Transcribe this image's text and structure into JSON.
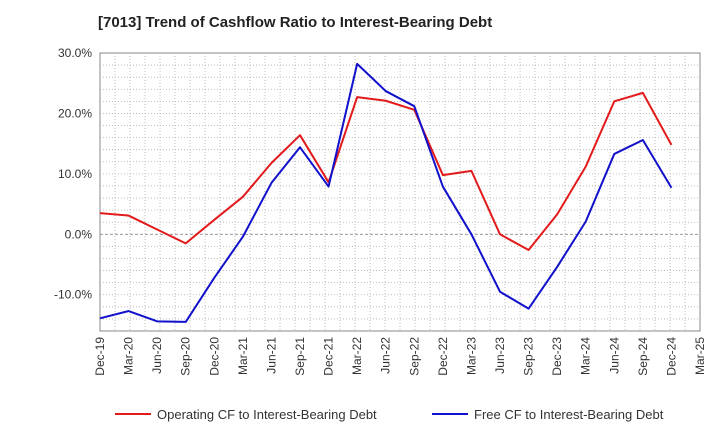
{
  "chart_data": {
    "type": "line",
    "title": "[7013]  Trend of Cashflow Ratio to Interest-Bearing Debt",
    "xlabel": "",
    "ylabel": "",
    "categories": [
      "Dec-19",
      "Mar-20",
      "Jun-20",
      "Sep-20",
      "Dec-20",
      "Mar-21",
      "Jun-21",
      "Sep-21",
      "Dec-21",
      "Mar-22",
      "Jun-22",
      "Sep-22",
      "Dec-22",
      "Mar-23",
      "Jun-23",
      "Sep-23",
      "Dec-23",
      "Mar-24",
      "Jun-24",
      "Sep-24",
      "Dec-24",
      "Mar-25"
    ],
    "ylim": [
      -16,
      30
    ],
    "yticks": [
      30,
      20,
      10,
      0,
      -10
    ],
    "ytick_labels": [
      "30.0%",
      "20.0%",
      "10.0%",
      "0.0%",
      "-10.0%"
    ],
    "grid": true,
    "legend_position": "bottom",
    "series": [
      {
        "name": "Operating CF to Interest-Bearing Debt",
        "color": "#e31a1c",
        "values": [
          3.5,
          3.1,
          0.8,
          -1.5,
          2.4,
          6.2,
          11.8,
          16.4,
          8.6,
          22.7,
          22.1,
          20.6,
          9.8,
          10.5,
          0.0,
          -2.6,
          3.3,
          11.2,
          22.0,
          23.4,
          14.8,
          null
        ]
      },
      {
        "name": "Free CF to Interest-Bearing Debt",
        "color": "#1111cc",
        "values": [
          -13.9,
          -12.7,
          -14.4,
          -14.5,
          -7.2,
          -0.4,
          8.5,
          14.4,
          7.9,
          28.2,
          23.7,
          21.2,
          7.9,
          0.0,
          -9.5,
          -12.3,
          -5.4,
          2.1,
          13.3,
          15.6,
          7.7,
          null
        ]
      }
    ]
  }
}
